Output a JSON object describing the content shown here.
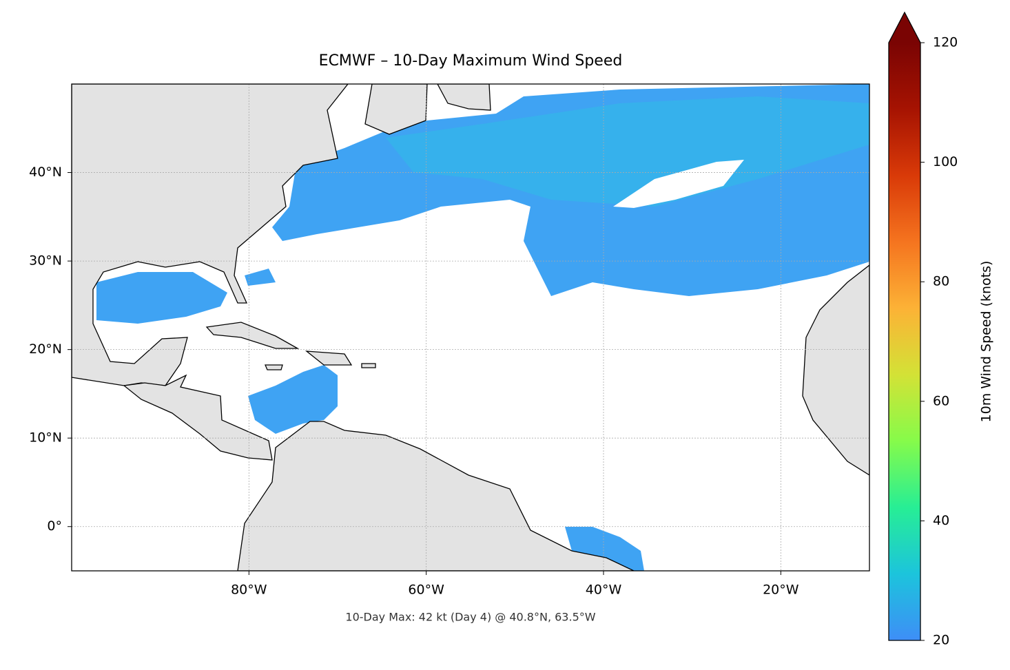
{
  "map": {
    "title": "ECMWF – 10-Day Maximum Wind Speed",
    "annotation": "10-Day Max: 42 kt (Day 4) @ 40.8°N, 63.5°W",
    "xlim": [
      -100,
      -10
    ],
    "ylim": [
      -5,
      50
    ],
    "xticks": [
      {
        "value": -80,
        "label": "80°W"
      },
      {
        "value": -60,
        "label": "60°W"
      },
      {
        "value": -40,
        "label": "40°W"
      },
      {
        "value": -20,
        "label": "20°W"
      }
    ],
    "yticks": [
      {
        "value": 0,
        "label": "0°"
      },
      {
        "value": 10,
        "label": "10°N"
      },
      {
        "value": 20,
        "label": "20°N"
      },
      {
        "value": 30,
        "label": "30°N"
      },
      {
        "value": 40,
        "label": "40°N"
      }
    ],
    "grid": true,
    "colorbar": {
      "label": "10m Wind Speed (knots)",
      "lim": [
        20,
        120
      ],
      "ticks": [
        20,
        40,
        60,
        80,
        100,
        120
      ],
      "extend": "max",
      "colors": [
        "#3e8ef7",
        "#1cc4dc",
        "#27ee95",
        "#86fb4a",
        "#d3e236",
        "#fcb236",
        "#f5741f",
        "#d93a08",
        "#a61302",
        "#7a0403"
      ]
    }
  }
}
